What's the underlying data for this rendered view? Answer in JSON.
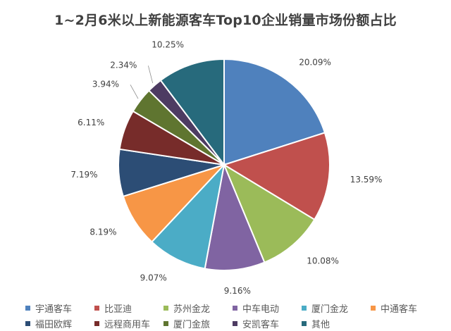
{
  "chart_data": {
    "type": "pie",
    "title": "1~2月6米以上新能源客车Top10企业销量市场份额占比",
    "categories": [
      "宇通客车",
      "比亚迪",
      "苏州金龙",
      "中车电动",
      "厦门金龙",
      "中通客车",
      "福田欧辉",
      "远程商用车",
      "厦门金旅",
      "安凯客车",
      "其他"
    ],
    "values": [
      20.09,
      13.59,
      10.08,
      9.16,
      9.07,
      8.19,
      7.19,
      6.11,
      3.94,
      2.34,
      10.25
    ],
    "labels": [
      "20.09%",
      "13.59%",
      "10.08%",
      "9.16%",
      "9.07%",
      "8.19%",
      "7.19%",
      "6.11%",
      "3.94%",
      "2.34%",
      "10.25%"
    ],
    "colors": [
      "#4F81BD",
      "#C0504D",
      "#9BBB59",
      "#8064A2",
      "#4BACC6",
      "#F79646",
      "#2C4D75",
      "#772C2A",
      "#5F7530",
      "#4D3B62",
      "#276A7C"
    ],
    "legend_position": "bottom"
  }
}
